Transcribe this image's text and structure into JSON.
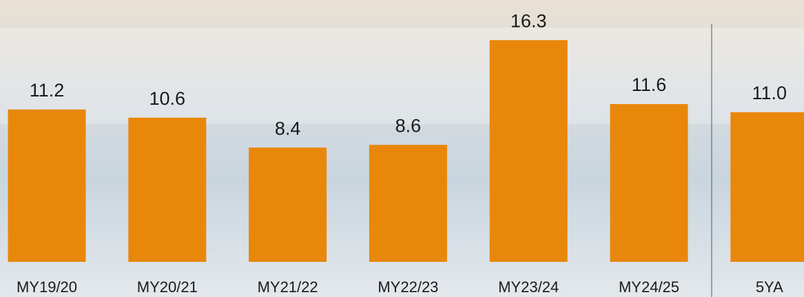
{
  "chart_data": {
    "type": "bar",
    "categories": [
      "MY19/20",
      "MY20/21",
      "MY21/22",
      "MY22/23",
      "MY23/24",
      "MY24/25",
      "5YA"
    ],
    "values": [
      11.2,
      10.6,
      8.4,
      8.6,
      16.3,
      11.6,
      11.0
    ],
    "value_labels": [
      "11.2",
      "10.6",
      "8.4",
      "8.6",
      "16.3",
      "11.6",
      "11.0"
    ],
    "color": "#e8870a",
    "ylim": [
      0,
      19.25
    ]
  }
}
